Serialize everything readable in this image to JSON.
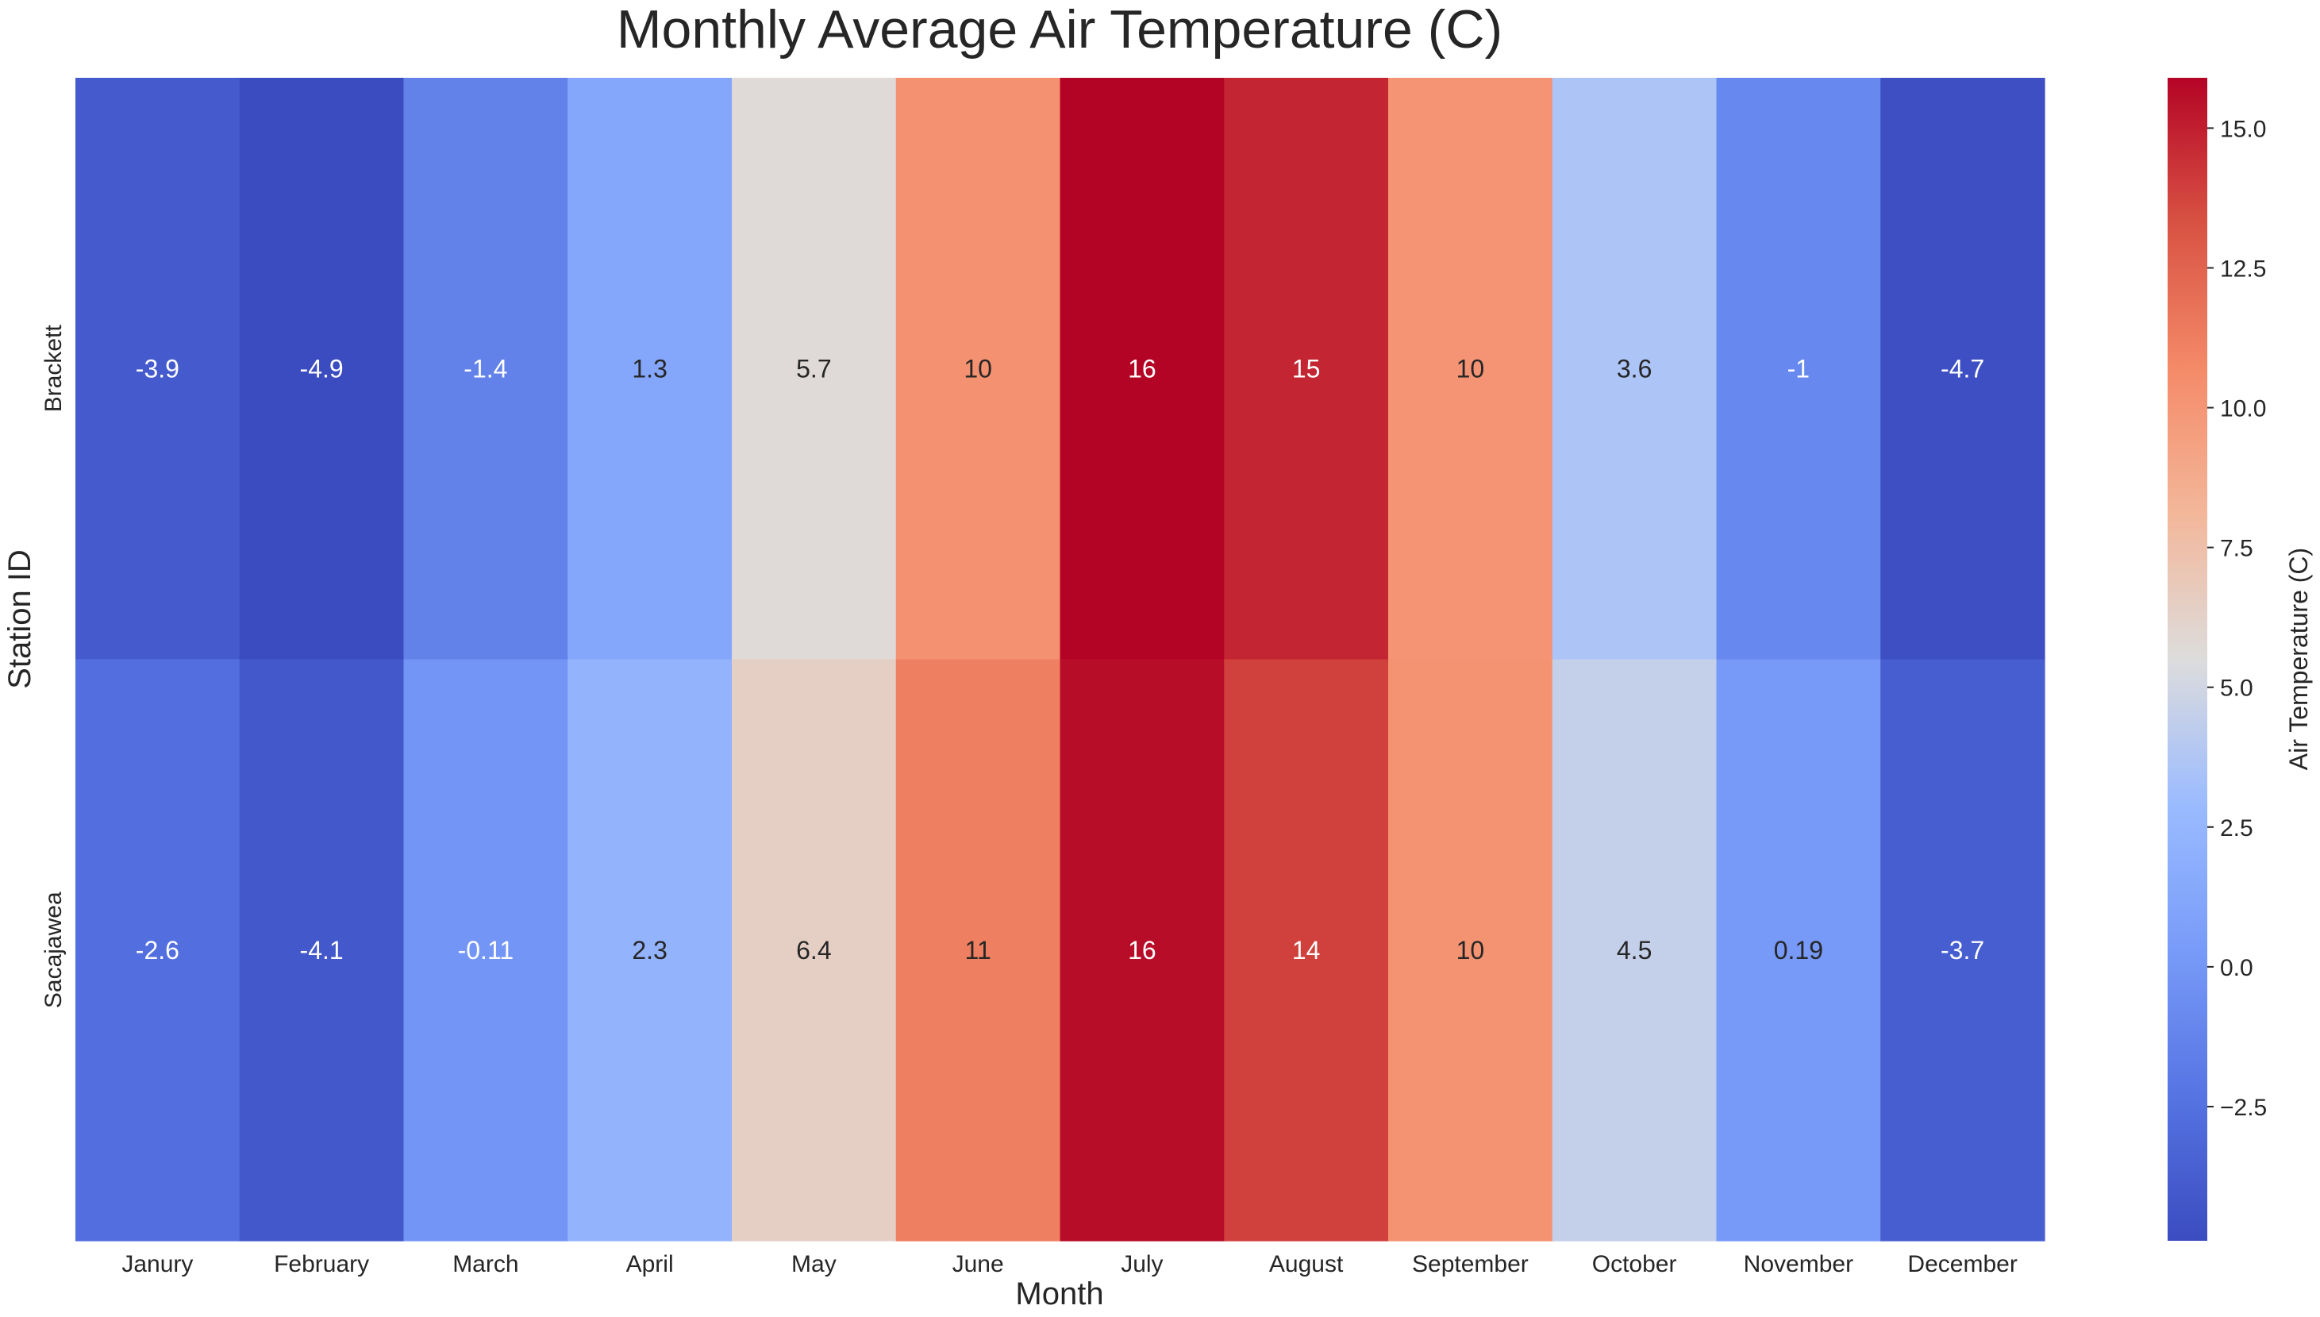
{
  "chart_data": {
    "type": "heatmap",
    "title": "Monthly Average Air Temperature (C)",
    "xlabel": "Month",
    "ylabel": "Station ID",
    "colorbar_label": "Air Temperature (C)",
    "colormap": "coolwarm",
    "x_categories": [
      "Janury",
      "February",
      "March",
      "April",
      "May",
      "June",
      "July",
      "August",
      "September",
      "October",
      "November",
      "December"
    ],
    "y_categories": [
      "Brackett",
      "Sacajawea"
    ],
    "values": [
      [
        -3.9,
        -4.9,
        -1.4,
        1.3,
        5.7,
        10.3,
        15.9,
        14.8,
        10.1,
        3.6,
        -1.0,
        -4.7
      ],
      [
        -2.6,
        -4.1,
        -0.11,
        2.3,
        6.4,
        11.2,
        15.6,
        13.9,
        10.2,
        4.5,
        0.19,
        -3.7
      ]
    ],
    "cell_labels": [
      [
        "-3.9",
        "-4.9",
        "-1.4",
        "1.3",
        "5.7",
        "10",
        "16",
        "15",
        "10",
        "3.6",
        "-1",
        "-4.7"
      ],
      [
        "-2.6",
        "-4.1",
        "-0.11",
        "2.3",
        "6.4",
        "11",
        "16",
        "14",
        "10",
        "4.5",
        "0.19",
        "-3.7"
      ]
    ],
    "color_range": [
      -4.9,
      15.9
    ],
    "colorbar_ticks": [
      -2.5,
      0.0,
      2.5,
      5.0,
      7.5,
      10.0,
      12.5,
      15.0
    ],
    "colorbar_tick_labels": [
      "−2.5",
      "0.0",
      "2.5",
      "5.0",
      "7.5",
      "10.0",
      "12.5",
      "15.0"
    ]
  }
}
